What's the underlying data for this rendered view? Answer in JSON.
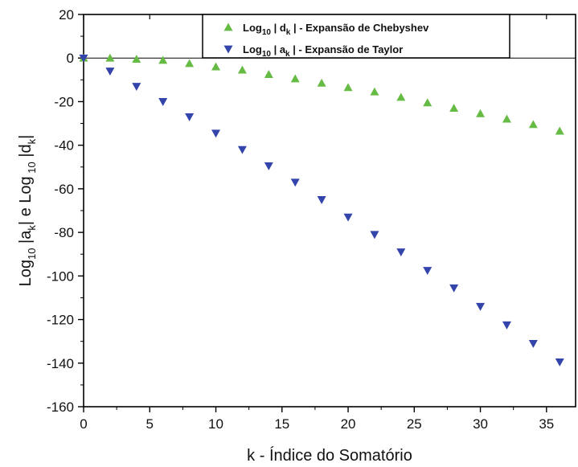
{
  "chart_data": {
    "type": "scatter",
    "xlabel": "k - Índice do Somatório",
    "ylabel_parts": [
      "Log",
      "10",
      " |a",
      "k",
      "|  e  Log",
      " 10",
      " |d",
      "k",
      "|"
    ],
    "xlim": [
      0,
      37.2
    ],
    "ylim": [
      -160,
      20
    ],
    "x_ticks": [
      0,
      5,
      10,
      15,
      20,
      25,
      30,
      35
    ],
    "y_ticks": [
      20,
      0,
      -20,
      -40,
      -60,
      -80,
      -100,
      -120,
      -140,
      -160
    ],
    "grid": false,
    "legend_position": "top-center",
    "series": [
      {
        "name": "Chebyshev",
        "legend": {
          "pre": "Log",
          "sub1": "10",
          "mid": " | d",
          "sub2": "k",
          "post": " | - Expansão de Chebyshev"
        },
        "marker": "triangle-up",
        "color": "#66bb44",
        "x": [
          0,
          2,
          4,
          6,
          8,
          10,
          12,
          14,
          16,
          18,
          20,
          22,
          24,
          26,
          28,
          30,
          32,
          34,
          36
        ],
        "y": [
          0,
          0,
          -0.5,
          -1,
          -2.5,
          -4,
          -5.5,
          -7.5,
          -9.5,
          -11.5,
          -13.5,
          -15.5,
          -18,
          -20.5,
          -23,
          -25.5,
          -28,
          -30.5,
          -33.5
        ]
      },
      {
        "name": "Taylor",
        "legend": {
          "pre": "Log",
          "sub1": "10",
          "mid": " | a",
          "sub2": "k",
          "post": " | - Expansão de Taylor"
        },
        "marker": "triangle-down",
        "color": "#3344aa",
        "x": [
          0,
          2,
          4,
          6,
          8,
          10,
          12,
          14,
          16,
          18,
          20,
          22,
          24,
          26,
          28,
          30,
          32,
          34,
          36
        ],
        "y": [
          0,
          -6,
          -13,
          -20,
          -27,
          -34.5,
          -42,
          -49.5,
          -57,
          -65,
          -73,
          -81,
          -89,
          -97.5,
          -105.5,
          -114,
          -122.5,
          -131,
          -139.5
        ]
      }
    ]
  }
}
